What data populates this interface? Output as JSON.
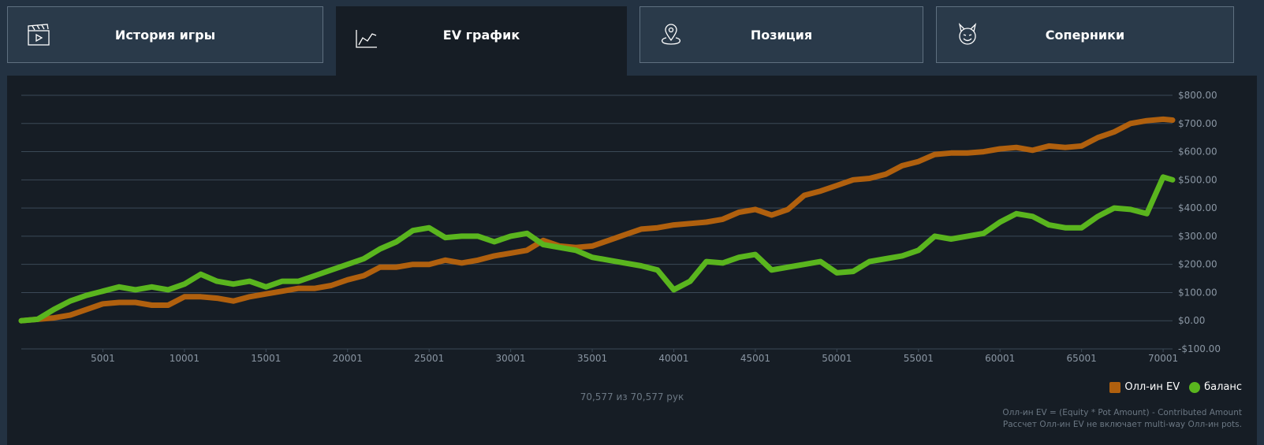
{
  "tabs": [
    {
      "label": "История игры",
      "icon": "clapperboard-icon",
      "active": false
    },
    {
      "label": "EV график",
      "icon": "line-chart-icon",
      "active": true
    },
    {
      "label": "Позиция",
      "icon": "location-pin-icon",
      "active": false
    },
    {
      "label": "Соперники",
      "icon": "devil-face-icon",
      "active": false
    }
  ],
  "hands_caption": "70,577 из 70,577 рук",
  "footnotes": [
    "Олл-ин EV = (Equity * Pot Amount) - Contributed Amount",
    "Рассчет Олл-ин EV не включает multi-way Олл-ин pots."
  ],
  "colors": {
    "ev": "#b0600e",
    "balance": "#5ab51e",
    "grid": "#3b4957",
    "axis_text": "#8a96a3"
  },
  "chart_data": {
    "type": "line",
    "x_ticks": [
      5001,
      10001,
      15001,
      20001,
      25001,
      30001,
      35001,
      40001,
      45001,
      50001,
      55001,
      60001,
      65001,
      70001
    ],
    "y_ticks": [
      -100,
      0,
      100,
      200,
      300,
      400,
      500,
      600,
      700,
      800
    ],
    "y_tick_labels": [
      "-$100.00",
      "$0.00",
      "$100.00",
      "$200.00",
      "$300.00",
      "$400.00",
      "$500.00",
      "$600.00",
      "$700.00",
      "$800.00"
    ],
    "xlim": [
      0,
      70577
    ],
    "ylim": [
      -100,
      800
    ],
    "grid": true,
    "legend_position": "bottom-right",
    "series": [
      {
        "name": "Олл-ин EV",
        "legend_shape": "square",
        "x": [
          0,
          1000,
          2000,
          3000,
          4000,
          5000,
          6000,
          7000,
          8000,
          9000,
          10000,
          11000,
          12000,
          13000,
          14000,
          15000,
          16000,
          17000,
          18000,
          19000,
          20000,
          21000,
          22000,
          23000,
          24000,
          25000,
          26000,
          27000,
          28000,
          29000,
          30000,
          31000,
          32000,
          33000,
          34000,
          35000,
          36000,
          37000,
          38000,
          39000,
          40000,
          41000,
          42000,
          43000,
          44000,
          45000,
          46000,
          47000,
          48000,
          49000,
          50000,
          51000,
          52000,
          53000,
          54000,
          55000,
          56000,
          57000,
          58000,
          59000,
          60000,
          61000,
          62000,
          63000,
          64000,
          65000,
          66000,
          67000,
          68000,
          69000,
          70000,
          70577
        ],
        "y": [
          0,
          5,
          10,
          20,
          40,
          60,
          65,
          65,
          55,
          55,
          85,
          85,
          80,
          70,
          85,
          95,
          105,
          115,
          115,
          125,
          145,
          160,
          190,
          190,
          200,
          200,
          215,
          205,
          215,
          230,
          240,
          250,
          285,
          265,
          260,
          265,
          285,
          305,
          325,
          330,
          340,
          345,
          350,
          360,
          385,
          395,
          375,
          395,
          445,
          460,
          480,
          500,
          505,
          520,
          550,
          565,
          590,
          595,
          595,
          600,
          610,
          615,
          605,
          620,
          615,
          620,
          650,
          670,
          700,
          710,
          715,
          712
        ]
      },
      {
        "name": "баланс",
        "legend_shape": "circle",
        "x": [
          0,
          1000,
          2000,
          3000,
          4000,
          5000,
          6000,
          7000,
          8000,
          9000,
          10000,
          11000,
          12000,
          13000,
          14000,
          15000,
          16000,
          17000,
          18000,
          19000,
          20000,
          21000,
          22000,
          23000,
          24000,
          25000,
          26000,
          27000,
          28000,
          29000,
          30000,
          31000,
          32000,
          33000,
          34000,
          35000,
          36000,
          37000,
          38000,
          39000,
          40000,
          41000,
          42000,
          43000,
          44000,
          45000,
          46000,
          47000,
          48000,
          49000,
          50000,
          51000,
          52000,
          53000,
          54000,
          55000,
          56000,
          57000,
          58000,
          59000,
          60000,
          61000,
          62000,
          63000,
          64000,
          65000,
          66000,
          67000,
          68000,
          69000,
          70000,
          70577
        ],
        "y": [
          0,
          5,
          40,
          70,
          90,
          105,
          120,
          110,
          120,
          110,
          130,
          165,
          140,
          130,
          140,
          120,
          140,
          140,
          160,
          180,
          200,
          220,
          255,
          280,
          320,
          330,
          295,
          300,
          300,
          280,
          300,
          310,
          270,
          260,
          250,
          225,
          215,
          205,
          195,
          180,
          110,
          140,
          210,
          205,
          225,
          235,
          180,
          190,
          200,
          210,
          170,
          175,
          210,
          220,
          230,
          250,
          300,
          290,
          300,
          310,
          350,
          380,
          370,
          340,
          330,
          330,
          370,
          400,
          395,
          380,
          510,
          500
        ]
      }
    ]
  }
}
